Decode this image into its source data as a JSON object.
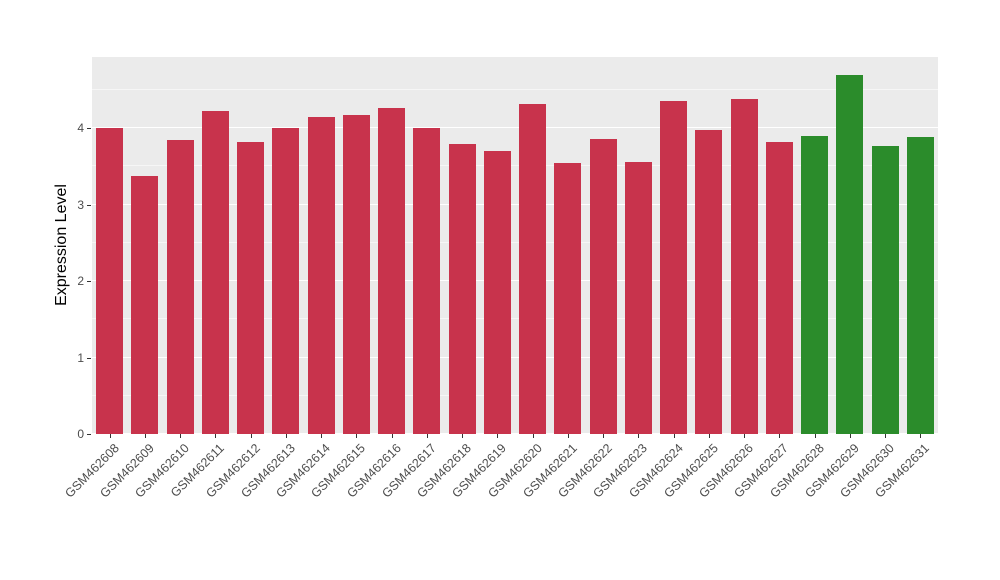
{
  "chart_data": {
    "type": "bar",
    "title": "",
    "xlabel": "",
    "ylabel": "Expression Level",
    "ylim": [
      0,
      4.93
    ],
    "yticks": [
      0,
      1,
      2,
      3,
      4
    ],
    "yticks_minor": [
      0.5,
      1.5,
      2.5,
      3.5,
      4.5
    ],
    "grid": "on",
    "legend": "none",
    "panel_background": "#EBEBEB",
    "grid_color": "#FFFFFF",
    "axis_text_color": "#4D4D4D",
    "categories": [
      "GSM462608",
      "GSM462609",
      "GSM462610",
      "GSM462611",
      "GSM462612",
      "GSM462613",
      "GSM462614",
      "GSM462615",
      "GSM462616",
      "GSM462617",
      "GSM462618",
      "GSM462619",
      "GSM462620",
      "GSM462621",
      "GSM462622",
      "GSM462623",
      "GSM462624",
      "GSM462625",
      "GSM462626",
      "GSM462627",
      "GSM462628",
      "GSM462629",
      "GSM462630",
      "GSM462631"
    ],
    "values": [
      4.0,
      3.38,
      3.84,
      4.22,
      3.82,
      4.0,
      4.15,
      4.17,
      4.26,
      4.0,
      3.79,
      3.7,
      4.31,
      3.55,
      3.86,
      3.56,
      4.36,
      3.97,
      4.38,
      3.82,
      3.9,
      4.7,
      3.77,
      3.88
    ],
    "bar_colors": [
      "#C8334C",
      "#C8334C",
      "#C8334C",
      "#C8334C",
      "#C8334C",
      "#C8334C",
      "#C8334C",
      "#C8334C",
      "#C8334C",
      "#C8334C",
      "#C8334C",
      "#C8334C",
      "#C8334C",
      "#C8334C",
      "#C8334C",
      "#C8334C",
      "#C8334C",
      "#C8334C",
      "#C8334C",
      "#C8334C",
      "#2B8C2B",
      "#2B8C2B",
      "#2B8C2B",
      "#2B8C2B"
    ]
  }
}
